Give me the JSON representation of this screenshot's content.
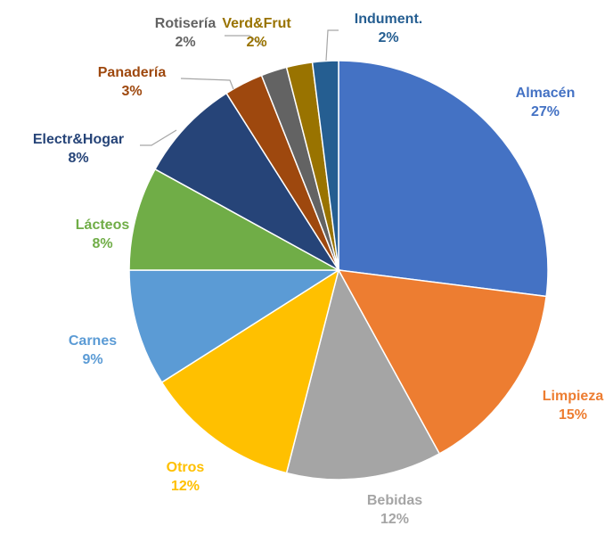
{
  "chart_data": {
    "type": "pie",
    "categories": [
      "Almacén",
      "Limpieza",
      "Bebidas",
      "Otros",
      "Carnes",
      "Lácteos",
      "Electr&Hogar",
      "Panadería",
      "Rotisería",
      "Verd&Frut",
      "Indument."
    ],
    "values": [
      27,
      15,
      12,
      12,
      9,
      8,
      8,
      3,
      2,
      2,
      2
    ],
    "value_labels": [
      "27%",
      "15%",
      "12%",
      "12%",
      "9%",
      "8%",
      "8%",
      "3%",
      "2%",
      "2%",
      "2%"
    ],
    "colors": [
      "#4472c4",
      "#ed7d31",
      "#a5a5a5",
      "#ffc000",
      "#5b9bd5",
      "#70ad47",
      "#264478",
      "#9e480e",
      "#636363",
      "#997300",
      "#255e91"
    ]
  }
}
